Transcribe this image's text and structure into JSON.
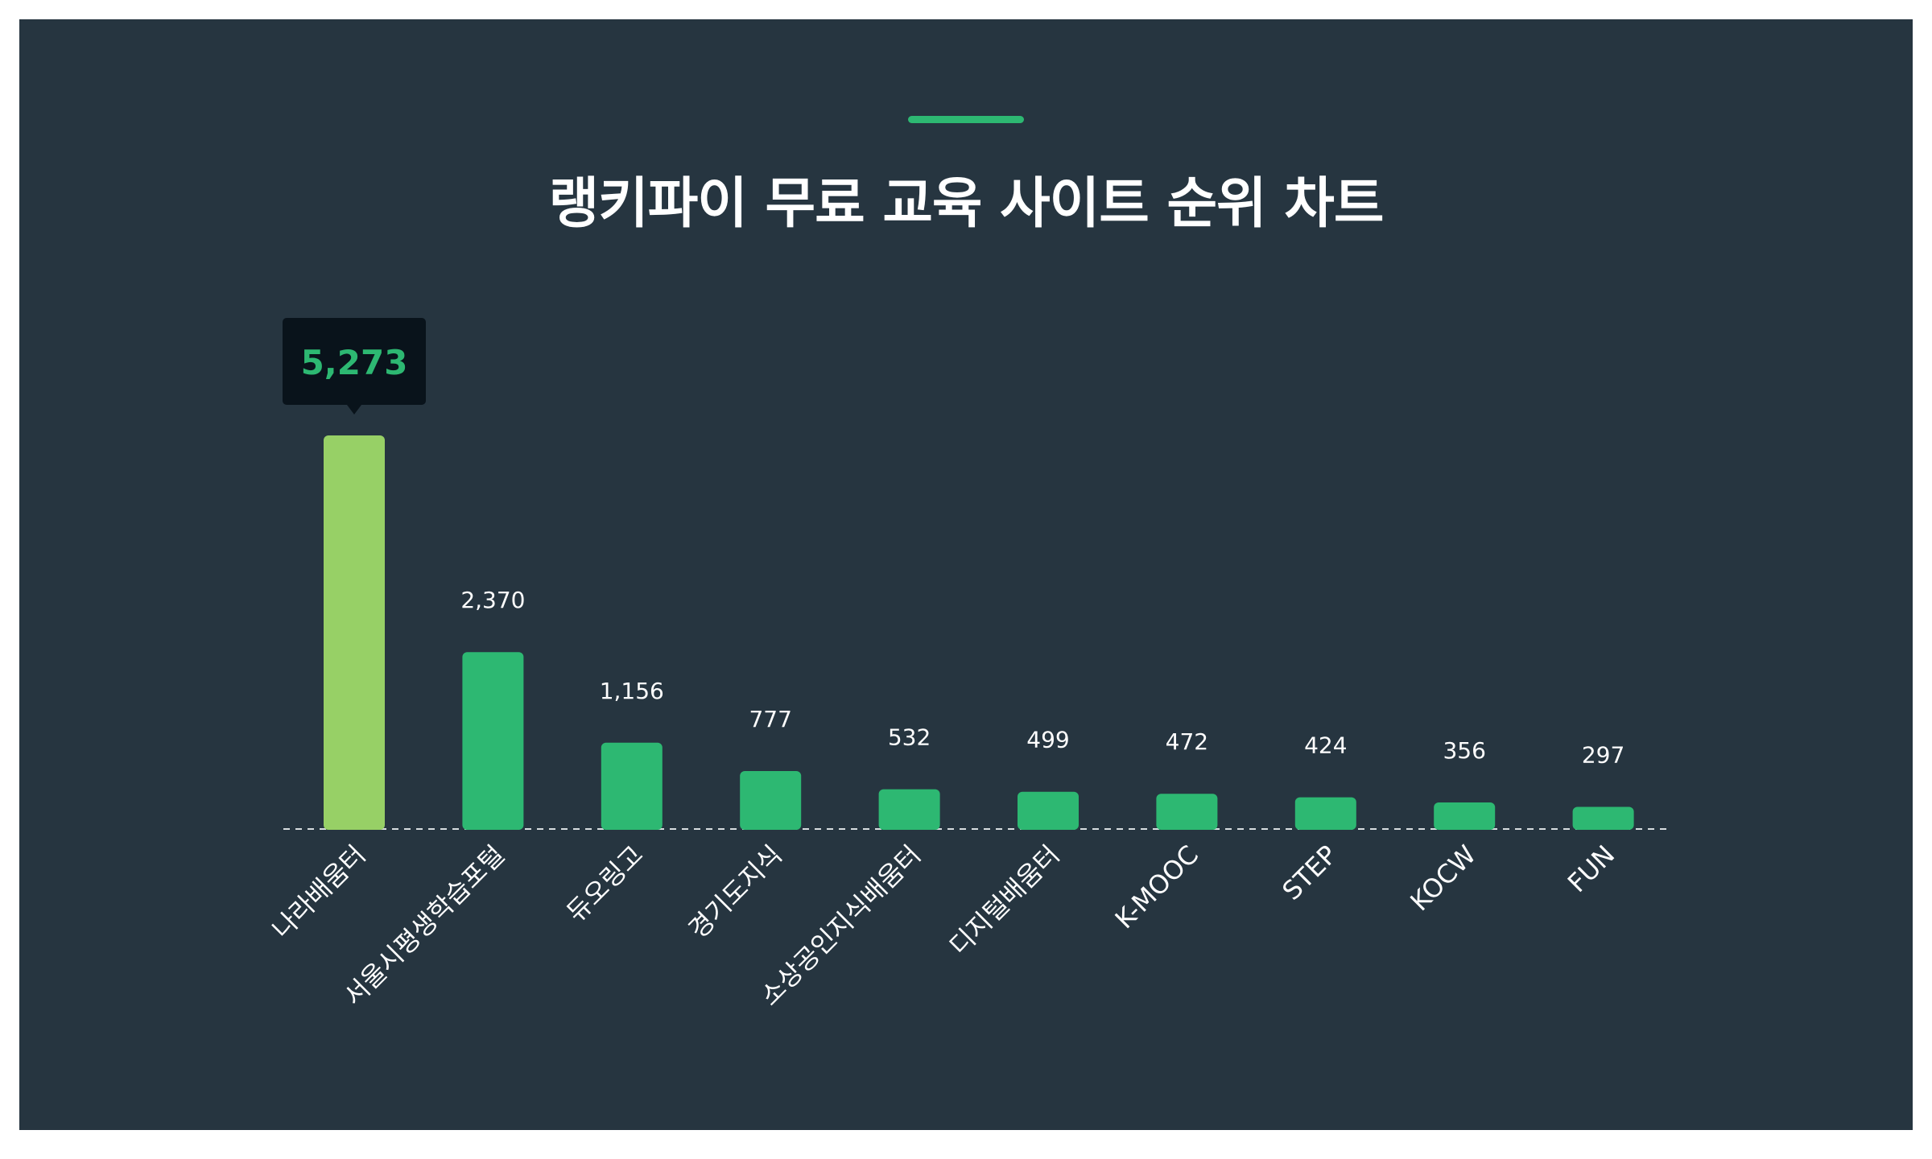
{
  "title": "랭키파이 무료 교육 사이트 순위 차트",
  "colors": {
    "background": "#263540",
    "highlight_bar": "#97d066",
    "bar": "#2db872",
    "accent": "#2db872",
    "tooltip_bg": "#09131b",
    "text": "#ffffff"
  },
  "chart_data": {
    "type": "bar",
    "title": "랭키파이 무료 교육 사이트 순위 차트",
    "categories": [
      "나라배움터",
      "서울시평생학습포털",
      "듀오링고",
      "경기도지식",
      "소상공인지식배움터",
      "디지털배움터",
      "K-MOOC",
      "STEP",
      "KOCW",
      "FUN"
    ],
    "values": [
      5273,
      2370,
      1156,
      777,
      532,
      499,
      472,
      424,
      356,
      297
    ],
    "value_labels": [
      "5,273",
      "2,370",
      "1,156",
      "777",
      "532",
      "499",
      "472",
      "424",
      "356",
      "297"
    ],
    "highlighted_index": 0,
    "xlabel": "",
    "ylabel": "",
    "ylim": [
      0,
      5273
    ],
    "grid": false,
    "legend": "none"
  }
}
